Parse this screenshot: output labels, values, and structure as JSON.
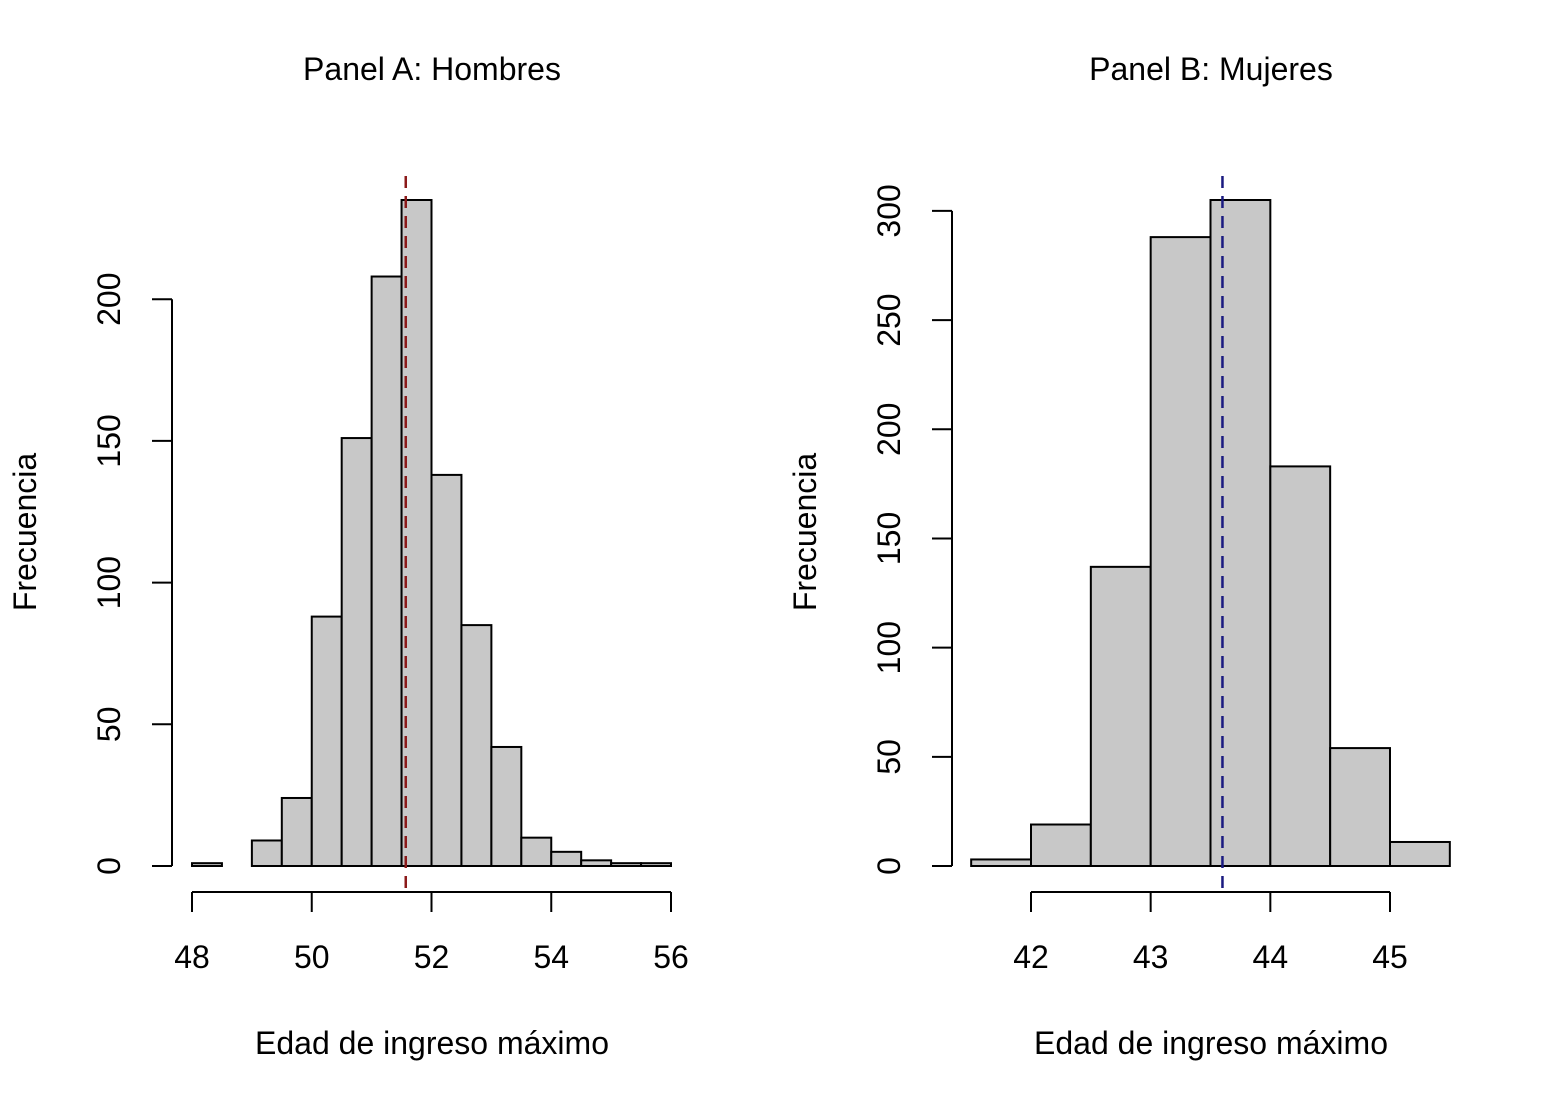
{
  "chart_data": [
    {
      "type": "bar",
      "title": "Panel A: Hombres",
      "xlabel": "Edad de ingreso máximo",
      "ylabel": "Frecuencia",
      "bin_edges": [
        48,
        48.5,
        49,
        49.5,
        50,
        50.5,
        51,
        51.5,
        52,
        52.5,
        53,
        53.5,
        54,
        54.5,
        55,
        55.5,
        56
      ],
      "values": [
        1,
        0,
        9,
        24,
        88,
        151,
        208,
        235,
        138,
        85,
        42,
        10,
        5,
        2,
        1,
        1
      ],
      "mean_line": 51.57,
      "mean_line_color": "#8B1A1A",
      "bar_color": "#C8C8C8",
      "xlim": [
        48,
        56
      ],
      "ylim": [
        0,
        235
      ],
      "xticks": [
        {
          "value": 48,
          "label": "48"
        },
        {
          "value": 50,
          "label": "50"
        },
        {
          "value": 52,
          "label": "52"
        },
        {
          "value": 54,
          "label": "54"
        },
        {
          "value": 56,
          "label": "56"
        }
      ],
      "yticks": [
        {
          "value": 0,
          "label": "0"
        },
        {
          "value": 50,
          "label": "50"
        },
        {
          "value": 100,
          "label": "100"
        },
        {
          "value": 150,
          "label": "150"
        },
        {
          "value": 200,
          "label": "200"
        }
      ],
      "grid": false,
      "legend": "none"
    },
    {
      "type": "bar",
      "title": "Panel B: Mujeres",
      "xlabel": "Edad de ingreso máximo",
      "ylabel": "Frecuencia",
      "bin_edges": [
        41.5,
        42,
        42.5,
        43,
        43.5,
        44,
        44.5,
        45,
        45.5
      ],
      "values": [
        3,
        19,
        137,
        288,
        305,
        183,
        54,
        11
      ],
      "mean_line": 43.6,
      "mean_line_color": "#1A1A80",
      "bar_color": "#C8C8C8",
      "xlim": [
        42,
        45
      ],
      "ylim": [
        0,
        305
      ],
      "xticks": [
        {
          "value": 42,
          "label": "42"
        },
        {
          "value": 43,
          "label": "43"
        },
        {
          "value": 44,
          "label": "44"
        },
        {
          "value": 45,
          "label": "45"
        }
      ],
      "yticks": [
        {
          "value": 0,
          "label": "0"
        },
        {
          "value": 50,
          "label": "50"
        },
        {
          "value": 100,
          "label": "100"
        },
        {
          "value": 150,
          "label": "150"
        },
        {
          "value": 200,
          "label": "200"
        },
        {
          "value": 250,
          "label": "250"
        },
        {
          "value": 300,
          "label": "300"
        }
      ],
      "grid": false,
      "legend": "none"
    }
  ]
}
